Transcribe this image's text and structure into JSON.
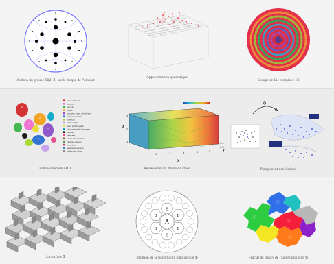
{
  "gallery": {
    "rows": [
      {
        "items": [
          {
            "caption": "Actions du groupe Sl(2, Z) sur le disque de Poincaré",
            "thumb": "poincare-disk-image"
          },
          {
            "caption": "Approximation quadratique",
            "thumb": "quadratic-approx-3d-image"
          },
          {
            "caption": "Groupe de Lie complexe E8",
            "thumb": "e8-lie-group-image"
          }
        ]
      },
      {
        "items": [
          {
            "caption": "Partitionnement MCL",
            "thumb": "mcl-partition-image",
            "legend": [
              "cellule endothéliale",
              "hépatocyte",
              "cell cycle",
              "fibroses",
              "monocytes, cancer, cell adhesion",
              "complément cellulaire",
              "erythrocyte",
              "interferon alpha",
              "facteur phosphorylation",
              "cellule endothéliale & processus",
              "fibroblaste",
              "interleukine",
              "cellules & myofibroblaste",
              "interaction récepteur",
              "Transcription",
              "hépatique & croissance",
              "inhibition des cellules"
            ]
          },
          {
            "caption": "Représentation 3D d'isosurface",
            "thumb": "isosurface-3d-image",
            "axis_x": "x",
            "axis_y": "y",
            "axis_z": "z"
          },
          {
            "caption": "Plongement non-linéaire",
            "thumb": "nonlinear-embedding-image",
            "phi": "ϕ"
          }
        ]
      },
      {
        "items": [
          {
            "caption": "La surface 𝔗",
            "thumb": "surface-t-image"
          },
          {
            "caption": "Itération de la substitution topologique 𝔅",
            "thumb": "substitution-iteration-image",
            "cells": [
              "A",
              "B",
              "B",
              "B",
              "B",
              "B",
              "B"
            ]
          },
          {
            "caption": "Fractal de Rauzy de l'automorphisme 𝔅",
            "thumb": "rauzy-fractal-image"
          }
        ]
      }
    ]
  }
}
